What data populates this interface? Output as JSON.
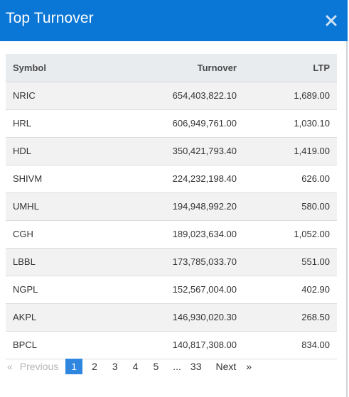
{
  "modal": {
    "title": "Top Turnover",
    "close_label": "×"
  },
  "table": {
    "headers": {
      "symbol": "Symbol",
      "turnover": "Turnover",
      "ltp": "LTP"
    },
    "rows": [
      {
        "symbol": "NRIC",
        "turnover": "654,403,822.10",
        "ltp": "1,689.00"
      },
      {
        "symbol": "HRL",
        "turnover": "606,949,761.00",
        "ltp": "1,030.10"
      },
      {
        "symbol": "HDL",
        "turnover": "350,421,793.40",
        "ltp": "1,419.00"
      },
      {
        "symbol": "SHIVM",
        "turnover": "224,232,198.40",
        "ltp": "626.00"
      },
      {
        "symbol": "UMHL",
        "turnover": "194,948,992.20",
        "ltp": "580.00"
      },
      {
        "symbol": "CGH",
        "turnover": "189,023,634.00",
        "ltp": "1,052.00"
      },
      {
        "symbol": "LBBL",
        "turnover": "173,785,033.70",
        "ltp": "551.00"
      },
      {
        "symbol": "NGPL",
        "turnover": "152,567,004.00",
        "ltp": "402.90"
      },
      {
        "symbol": "AKPL",
        "turnover": "146,930,020.30",
        "ltp": "268.50"
      },
      {
        "symbol": "BPCL",
        "turnover": "140,817,308.00",
        "ltp": "834.00"
      }
    ]
  },
  "pagination": {
    "first_arrow": "«",
    "previous": "Previous",
    "pages": [
      "1",
      "2",
      "3",
      "4",
      "5"
    ],
    "active_page": "1",
    "ellipsis": "...",
    "last_page": "33",
    "next": "Next",
    "last_arrow": "»"
  },
  "colors": {
    "header": "#0a76d6",
    "active_page": "#2e86de",
    "table_header": "#e9ecef",
    "row_striped": "#f2f2f2"
  }
}
